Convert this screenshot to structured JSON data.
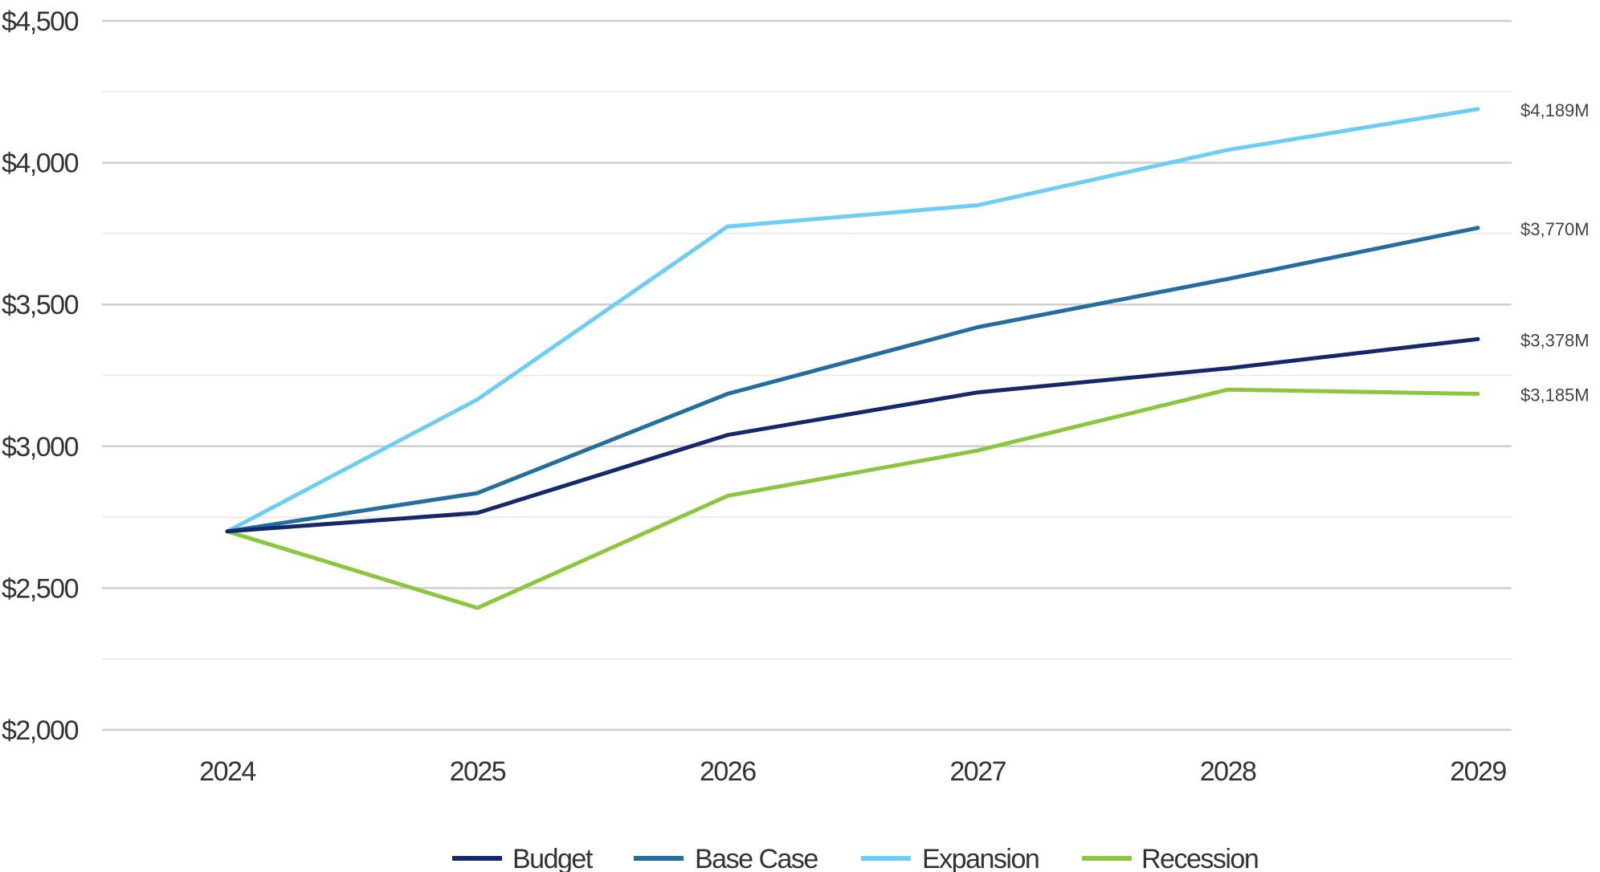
{
  "chart_data": {
    "type": "line",
    "categories": [
      "2024",
      "2025",
      "2026",
      "2027",
      "2028",
      "2029"
    ],
    "ylim": [
      2000,
      4500
    ],
    "y_ticks": [
      2000,
      2500,
      3000,
      3500,
      4000,
      4500
    ],
    "y_tick_labels": [
      "$2,000",
      "$2,500",
      "$3,000",
      "$3,500",
      "$4,000",
      "$4,500"
    ],
    "grid": "horizontal",
    "legend_position": "bottom",
    "series": [
      {
        "name": "Budget",
        "color": "#14286b",
        "values": [
          2700,
          2765,
          3040,
          3190,
          3275,
          3378
        ],
        "end_label": "$3,378M"
      },
      {
        "name": "Base Case",
        "color": "#236e9e",
        "values": [
          2700,
          2835,
          3185,
          3420,
          3590,
          3770
        ],
        "end_label": "$3,770M"
      },
      {
        "name": "Expansion",
        "color": "#6dcdf5",
        "values": [
          2700,
          3165,
          3775,
          3850,
          4045,
          4189
        ],
        "end_label": "$4,189M"
      },
      {
        "name": "Recession",
        "color": "#8cc63e",
        "values": [
          2700,
          2430,
          2825,
          2985,
          3200,
          3185
        ],
        "end_label": "$3,185M"
      }
    ]
  }
}
